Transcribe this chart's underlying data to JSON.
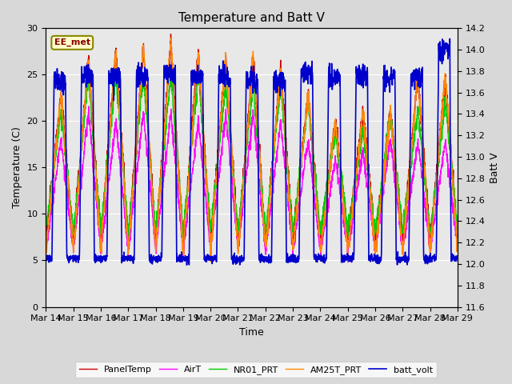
{
  "title": "Temperature and Batt V",
  "xlabel": "Time",
  "ylabel_left": "Temperature (C)",
  "ylabel_right": "Batt V",
  "annotation": "EE_met",
  "x_tick_labels": [
    "Mar 14",
    "Mar 15",
    "Mar 16",
    "Mar 17",
    "Mar 18",
    "Mar 19",
    "Mar 20",
    "Mar 21",
    "Mar 22",
    "Mar 23",
    "Mar 24",
    "Mar 25",
    "Mar 26",
    "Mar 27",
    "Mar 28",
    "Mar 29"
  ],
  "ylim_left": [
    0,
    30
  ],
  "ylim_right": [
    11.6,
    14.2
  ],
  "yticks_left": [
    0,
    5,
    10,
    15,
    20,
    25,
    30
  ],
  "yticks_right": [
    11.6,
    11.8,
    12.0,
    12.2,
    12.4,
    12.6,
    12.8,
    13.0,
    13.2,
    13.4,
    13.6,
    13.8,
    14.0,
    14.2
  ],
  "bg_color": "#d8d8d8",
  "plot_bg_color": "#e8e8e8",
  "series": {
    "PanelTemp": {
      "color": "#cc0000",
      "lw": 1.0
    },
    "AirT": {
      "color": "#ff00ff",
      "lw": 1.0
    },
    "NR01_PRT": {
      "color": "#00cc00",
      "lw": 1.0
    },
    "AM25T_PRT": {
      "color": "#ff8800",
      "lw": 1.0
    },
    "batt_volt": {
      "color": "#0000cc",
      "lw": 1.2
    }
  },
  "legend": {
    "PanelTemp": "PanelTemp",
    "AirT": "AirT",
    "NR01_PRT": "NR01_PRT",
    "AM25T_PRT": "AM25T_PRT",
    "batt_volt": "batt_volt"
  },
  "n_days": 15,
  "pts_per_day": 144,
  "figsize": [
    6.4,
    4.8
  ],
  "dpi": 100
}
